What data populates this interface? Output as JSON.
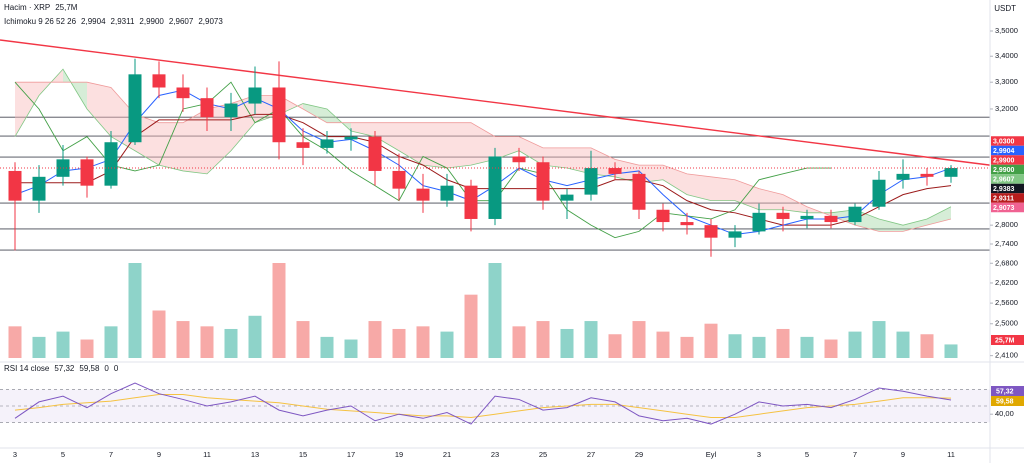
{
  "chart_data": {
    "type": "candlestick",
    "currency": "USDT",
    "log": true,
    "ylim": [
      2.398,
      3.627
    ],
    "yticks": [
      {
        "value": 3.5,
        "label": "3,5000"
      },
      {
        "value": 3.4,
        "label": "3,4000"
      },
      {
        "value": 3.3,
        "label": "3,3000"
      },
      {
        "value": 3.2,
        "label": "3,2000"
      },
      {
        "value": 2.8,
        "label": "2,8000"
      },
      {
        "value": 2.74,
        "label": "2,7400"
      },
      {
        "value": 2.68,
        "label": "2,6800"
      },
      {
        "value": 2.62,
        "label": "2,6200"
      },
      {
        "value": 2.56,
        "label": "2,5600"
      },
      {
        "value": 2.5,
        "label": "2,5000"
      },
      {
        "value": 2.41,
        "label": "2,4100"
      }
    ],
    "categories": [
      "3",
      null,
      "5",
      null,
      "7",
      null,
      "9",
      null,
      "11",
      null,
      "13",
      null,
      "15",
      null,
      "17",
      null,
      "19",
      null,
      "21",
      null,
      "23",
      null,
      "25",
      null,
      "27",
      null,
      "29",
      null,
      null,
      "Eyl",
      null,
      "3",
      null,
      "5",
      null,
      "7",
      null,
      "9",
      null,
      "11"
    ],
    "open": [
      2.98,
      2.88,
      2.96,
      3.02,
      2.93,
      3.08,
      3.33,
      3.28,
      3.24,
      3.17,
      3.22,
      3.28,
      3.08,
      3.06,
      3.09,
      3.1,
      2.98,
      2.92,
      2.88,
      2.93,
      2.82,
      3.03,
      3.01,
      2.88,
      2.9,
      2.99,
      2.97,
      2.85,
      2.81,
      2.8,
      2.76,
      2.78,
      2.84,
      2.82,
      2.83,
      2.81,
      2.86,
      2.95,
      2.97,
      2.96
    ],
    "high": [
      3.01,
      3.0,
      3.07,
      3.03,
      3.12,
      3.39,
      3.38,
      3.33,
      3.28,
      3.26,
      3.36,
      3.38,
      3.13,
      3.12,
      3.13,
      3.12,
      3.04,
      2.97,
      2.97,
      2.95,
      3.06,
      3.06,
      3.03,
      2.92,
      3.05,
      3.01,
      2.98,
      2.87,
      2.84,
      2.82,
      2.8,
      2.87,
      2.86,
      2.85,
      2.85,
      2.87,
      2.98,
      3.02,
      2.99,
      3.0
    ],
    "low": [
      2.72,
      2.84,
      2.93,
      2.89,
      2.92,
      3.07,
      3.24,
      3.19,
      3.12,
      3.12,
      3.18,
      3.02,
      3.0,
      3.04,
      3.05,
      2.93,
      2.88,
      2.84,
      2.86,
      2.78,
      2.8,
      2.98,
      2.85,
      2.82,
      2.88,
      2.95,
      2.82,
      2.78,
      2.77,
      2.7,
      2.73,
      2.77,
      2.78,
      2.79,
      2.79,
      2.8,
      2.85,
      2.92,
      2.93,
      2.94
    ],
    "close": [
      2.88,
      2.96,
      3.02,
      2.93,
      3.08,
      3.33,
      3.28,
      3.24,
      3.17,
      3.22,
      3.28,
      3.08,
      3.06,
      3.09,
      3.1,
      2.98,
      2.92,
      2.88,
      2.93,
      2.82,
      3.03,
      3.01,
      2.88,
      2.9,
      2.99,
      2.97,
      2.85,
      2.81,
      2.8,
      2.76,
      2.78,
      2.84,
      2.82,
      2.83,
      2.81,
      2.86,
      2.95,
      2.97,
      2.96,
      2.99
    ],
    "up_color": "#089981",
    "down_color": "#f23645",
    "levels": {
      "color": "#434651",
      "values": [
        3.17,
        3.102,
        3.028,
        2.872,
        2.788,
        2.721
      ]
    },
    "trendline": {
      "color": "#f23645",
      "from": 3.464,
      "to": 3.0
    },
    "volume": {
      "title": "Hacim · XRP",
      "last": {
        "value": 25.7,
        "label": "25,7M"
      },
      "tag_color": "#f23645",
      "up_color": "#8ed3c9",
      "down_color": "#f7a9a7",
      "values": [
        60,
        40,
        50,
        35,
        60,
        180,
        90,
        70,
        60,
        55,
        80,
        180,
        70,
        40,
        35,
        70,
        55,
        60,
        50,
        120,
        180,
        60,
        70,
        55,
        70,
        45,
        70,
        50,
        40,
        65,
        45,
        40,
        55,
        40,
        35,
        50,
        70,
        50,
        45,
        25.7
      ]
    },
    "ichimoku": {
      "title": "Ichimoku 9 26 52 26",
      "header_values": [
        {
          "value": 2.9904,
          "label": "2,9904",
          "color": "#2962ff"
        },
        {
          "value": 2.9311,
          "label": "2,9311",
          "color": "#b71c1c"
        },
        {
          "value": 2.99,
          "label": "2,9900",
          "color": "#43a047"
        },
        {
          "value": 2.9607,
          "label": "2,9607",
          "color": "#66bb6a"
        },
        {
          "value": 2.9073,
          "label": "2,9073",
          "color": "#f23645"
        }
      ],
      "tenkan": {
        "color": "#2962ff",
        "values": [
          2.9,
          2.93,
          2.98,
          2.99,
          3.02,
          3.15,
          3.25,
          3.27,
          3.22,
          3.2,
          3.24,
          3.2,
          3.12,
          3.08,
          3.09,
          3.05,
          3.0,
          2.93,
          2.91,
          2.88,
          2.93,
          2.99,
          2.95,
          2.93,
          2.95,
          2.97,
          2.98,
          2.9,
          2.83,
          2.8,
          2.77,
          2.78,
          2.8,
          2.82,
          2.82,
          2.83,
          2.9,
          2.95,
          2.96,
          2.99
        ]
      },
      "kijun": {
        "color": "#9c1b1b",
        "values": [
          2.94,
          2.94,
          2.94,
          2.94,
          2.98,
          3.1,
          3.16,
          3.16,
          3.16,
          3.16,
          3.18,
          3.18,
          3.15,
          3.1,
          3.1,
          3.08,
          3.03,
          3.0,
          2.95,
          2.92,
          2.92,
          2.92,
          2.92,
          2.92,
          2.92,
          2.95,
          2.95,
          2.93,
          2.88,
          2.85,
          2.84,
          2.82,
          2.8,
          2.8,
          2.8,
          2.82,
          2.86,
          2.9,
          2.92,
          2.93
        ]
      },
      "chikou": {
        "color": "#43a047",
        "values": [
          3.3,
          3.2,
          3.05,
          3.1,
          3.0,
          2.98,
          3.0,
          3.2,
          3.22,
          3.3,
          3.15,
          3.2,
          3.1,
          3.05,
          2.98,
          2.93,
          2.88,
          3.03,
          2.99,
          2.88,
          2.88,
          2.99,
          2.97,
          2.85,
          2.8,
          2.76,
          2.78,
          2.84,
          2.83,
          2.82,
          2.85,
          2.95,
          2.97,
          2.99,
          2.99,
          null,
          null,
          null,
          null,
          null
        ]
      },
      "span_a": {
        "color": "#81c784",
        "fill": "#a5d6a7",
        "values": [
          3.1,
          3.25,
          3.35,
          3.2,
          3.1,
          3.05,
          3.0,
          2.98,
          2.97,
          3.05,
          3.15,
          3.18,
          3.22,
          3.2,
          3.12,
          3.1,
          3.05,
          3.0,
          2.99,
          3.0,
          3.02,
          3.05,
          3.0,
          2.99,
          2.97,
          2.96,
          2.94,
          2.95,
          2.9,
          2.88,
          2.88,
          2.85,
          2.85,
          2.84,
          2.84,
          2.85,
          2.82,
          2.8,
          2.82,
          2.86
        ]
      },
      "span_b": {
        "color": "#ef9a9a",
        "fill": "#f8bbbb",
        "values": [
          3.3,
          3.3,
          3.3,
          3.3,
          3.28,
          3.18,
          3.15,
          3.15,
          3.2,
          3.22,
          3.25,
          3.25,
          3.2,
          3.15,
          3.15,
          3.15,
          3.15,
          3.15,
          3.15,
          3.15,
          3.1,
          3.1,
          3.06,
          3.06,
          3.06,
          3.02,
          3.0,
          3.0,
          2.97,
          2.96,
          2.95,
          2.92,
          2.9,
          2.86,
          2.83,
          2.8,
          2.78,
          2.78,
          2.8,
          2.82
        ]
      }
    },
    "price_labels": [
      {
        "value": 3.03,
        "label": "3,0300",
        "color": "#f23645"
      },
      {
        "value": 2.9904,
        "label": "2,9904",
        "color": "#2962ff"
      },
      {
        "value": 2.99,
        "label": "2,9900",
        "color": "#f23645"
      },
      {
        "value": 2.99,
        "label": "2,9900",
        "color": "#43a047"
      },
      {
        "value": 2.9607,
        "label": "2,9607",
        "color": "#81c784"
      },
      {
        "value": 2.9383,
        "label": "2,9383",
        "color": "#131722"
      },
      {
        "value": 2.9311,
        "label": "2,9311",
        "color": "#b71c1c"
      },
      {
        "value": 2.9073,
        "label": "2,9073",
        "color": "#f06292"
      }
    ],
    "rsi": {
      "title": "RSI 14 close",
      "color": "#7e57c2",
      "ma_color": "#f5c242",
      "ylim": [
        0,
        100
      ],
      "bands": [
        70,
        50,
        30
      ],
      "yticks": [
        {
          "value": 40,
          "label": "40,00"
        }
      ],
      "header_values": [
        {
          "value": 57.32,
          "label": "57,32",
          "color": "#7e57c2"
        },
        {
          "value": 59.58,
          "label": "59,58",
          "color": "#e0a800"
        },
        {
          "value": 0,
          "color": "#131722"
        },
        {
          "value": 0,
          "color": "#131722"
        }
      ],
      "values": [
        35,
        55,
        62,
        48,
        65,
        78,
        65,
        58,
        50,
        55,
        62,
        45,
        38,
        45,
        50,
        32,
        40,
        35,
        42,
        28,
        62,
        58,
        45,
        48,
        60,
        55,
        38,
        32,
        35,
        28,
        40,
        55,
        50,
        52,
        48,
        58,
        72,
        68,
        62,
        57.32
      ],
      "ma": [
        45,
        48,
        52,
        54,
        56,
        60,
        64,
        64,
        60,
        58,
        56,
        54,
        50,
        46,
        44,
        42,
        40,
        38,
        38,
        36,
        40,
        44,
        48,
        50,
        52,
        52,
        48,
        44,
        40,
        36,
        36,
        40,
        44,
        48,
        50,
        52,
        56,
        60,
        60,
        59.58
      ]
    }
  }
}
